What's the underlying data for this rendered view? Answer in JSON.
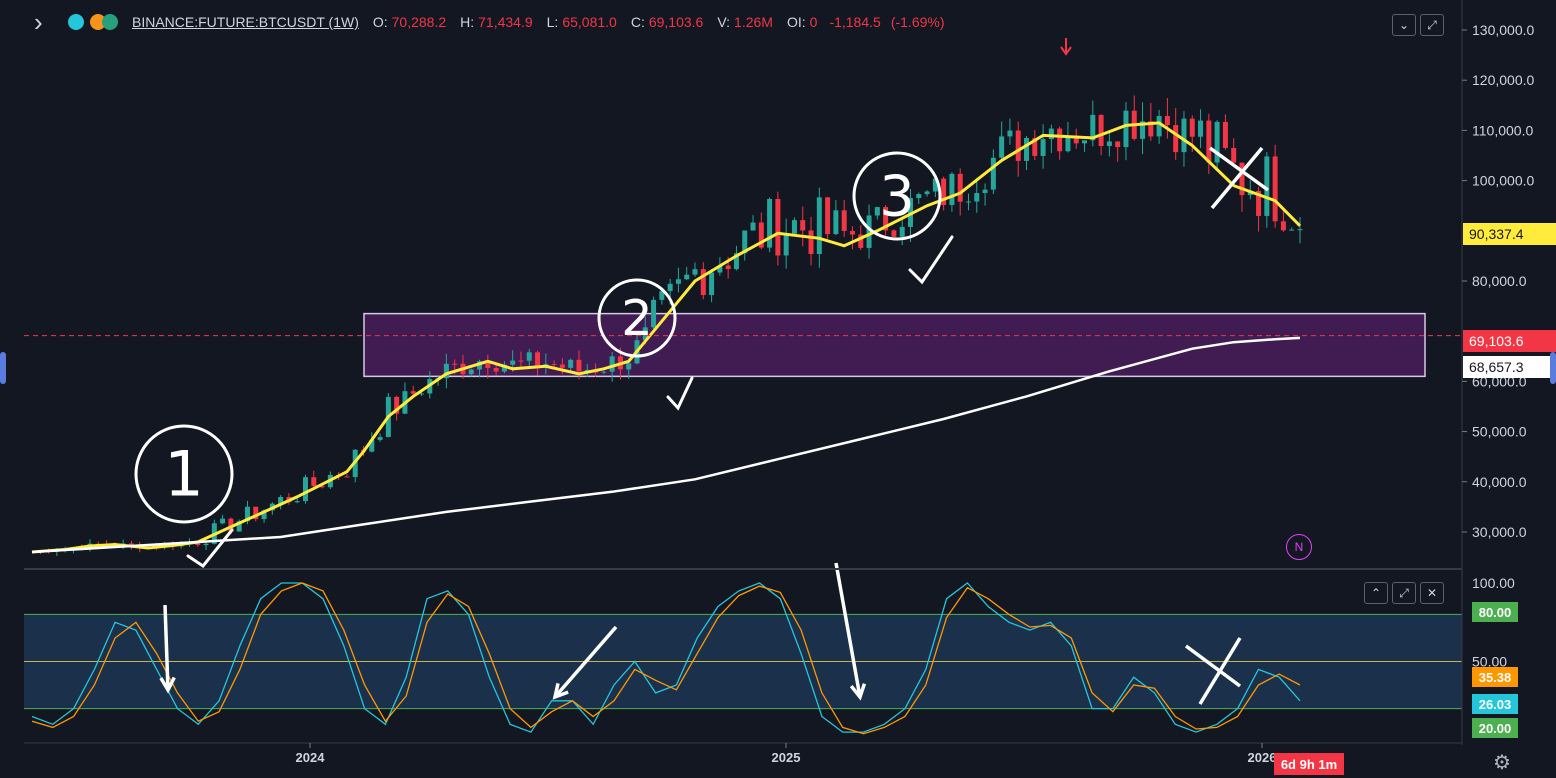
{
  "header": {
    "symbol": "BINANCE:FUTURE:BTCUSDT (1W)",
    "open_label": "O:",
    "open": "70,288.2",
    "high_label": "H:",
    "high": "71,434.9",
    "low_label": "L:",
    "low": "65,081.0",
    "close_label": "C:",
    "close": "69,103.6",
    "volume_label": "V:",
    "volume": "1.26M",
    "oi_label": "OI:",
    "oi": "0",
    "change": "-1,184.5",
    "change_pct": "(-1.69%)",
    "icons": [
      "chevron-right-icon",
      "status-dot-icon",
      "bitcoin-icon",
      "tether-icon"
    ]
  },
  "colors": {
    "background": "#131722",
    "up": "#26a69a",
    "down": "#f23645",
    "ema_fast": "#ffeb3b",
    "ema_slow": "#ffffff",
    "zone": "#4a1d5c",
    "stoch_k": "#26c6da",
    "stoch_d": "#ff9800",
    "band": "#1e3a5a",
    "band_line": "#4caf50"
  },
  "price_tags": {
    "ema_fast": "90,337.4",
    "last_price": "69,103.6",
    "ema_slow": "68,657.3"
  },
  "indicator_tags": {
    "upper": "80.00",
    "d_value": "35.38",
    "k_value": "26.03",
    "lower": "20.00"
  },
  "countdown": "6d 9h 1m",
  "markers": {
    "n_label": "N"
  },
  "annotations": [
    "1",
    "2",
    "3"
  ],
  "chart_data": [
    {
      "type": "candlestick",
      "title": "",
      "y_axis_ticks": [
        "30,000.0",
        "40,000.0",
        "50,000.0",
        "60,000.0",
        "70,000.0",
        "80,000.0",
        "90,000.0",
        "100,000.0",
        "110,000.0",
        "120,000.0",
        "130,000.0"
      ],
      "x_axis_ticks": [
        "2024",
        "2025",
        "2026"
      ],
      "ylim": [
        25000,
        133000
      ],
      "grid": false,
      "zone": {
        "low": 61000,
        "high": 73500
      },
      "series": [
        {
          "name": "",
          "kind": "ema",
          "points": [
            [
              0,
              26000
            ],
            [
              4,
              26500
            ],
            [
              7,
              27200
            ],
            [
              10,
              27500
            ],
            [
              14,
              26800
            ],
            [
              17,
              27300
            ],
            [
              20,
              28000
            ],
            [
              24,
              31000
            ],
            [
              28,
              34000
            ],
            [
              32,
              37000
            ],
            [
              35,
              39500
            ],
            [
              38,
              42000
            ],
            [
              40,
              46000
            ],
            [
              43,
              53000
            ],
            [
              46,
              57000
            ],
            [
              50,
              61500
            ],
            [
              55,
              64000
            ],
            [
              58,
              62500
            ],
            [
              62,
              63000
            ],
            [
              66,
              61500
            ],
            [
              69,
              62500
            ],
            [
              72,
              64000
            ],
            [
              75,
              70000
            ],
            [
              80,
              80000
            ],
            [
              85,
              85000
            ],
            [
              90,
              89500
            ],
            [
              95,
              88500
            ],
            [
              98,
              87000
            ],
            [
              102,
              90000
            ],
            [
              108,
              95000
            ],
            [
              112,
              97500
            ],
            [
              117,
              104000
            ],
            [
              122,
              109000
            ],
            [
              128,
              108500
            ],
            [
              132,
              111000
            ],
            [
              136,
              111500
            ],
            [
              140,
              107000
            ],
            [
              145,
              99000
            ],
            [
              150,
              96000
            ],
            [
              153,
              91000
            ]
          ]
        },
        {
          "name": "",
          "kind": "ma",
          "points": [
            [
              0,
              26000
            ],
            [
              10,
              27000
            ],
            [
              20,
              28000
            ],
            [
              30,
              29000
            ],
            [
              40,
              31500
            ],
            [
              50,
              34000
            ],
            [
              60,
              36000
            ],
            [
              70,
              38000
            ],
            [
              80,
              40500
            ],
            [
              90,
              44500
            ],
            [
              100,
              48500
            ],
            [
              110,
              52500
            ],
            [
              120,
              57000
            ],
            [
              130,
              62000
            ],
            [
              140,
              66500
            ],
            [
              145,
              67800
            ],
            [
              150,
              68400
            ],
            [
              153,
              68657
            ]
          ]
        }
      ]
    },
    {
      "type": "line",
      "title": "",
      "y_axis_ticks": [
        "20.00",
        "50.00",
        "80.00",
        "100.00"
      ],
      "ylim": [
        0,
        100
      ],
      "band": [
        20,
        80
      ],
      "series": [
        {
          "name": "",
          "kind": "k",
          "values": [
            15,
            10,
            20,
            45,
            75,
            70,
            45,
            20,
            10,
            25,
            60,
            90,
            100,
            100,
            90,
            60,
            20,
            10,
            40,
            90,
            95,
            80,
            40,
            10,
            5,
            25,
            25,
            10,
            35,
            50,
            30,
            35,
            65,
            85,
            95,
            100,
            90,
            55,
            15,
            5,
            5,
            10,
            20,
            45,
            90,
            100,
            85,
            75,
            70,
            75,
            60,
            20,
            20,
            40,
            30,
            10,
            5,
            10,
            20,
            45,
            40,
            25
          ]
        },
        {
          "name": "",
          "kind": "d",
          "values": [
            12,
            8,
            15,
            35,
            65,
            75,
            55,
            30,
            12,
            18,
            45,
            80,
            95,
            100,
            95,
            70,
            35,
            12,
            28,
            75,
            93,
            85,
            55,
            20,
            8,
            18,
            25,
            15,
            25,
            45,
            38,
            32,
            55,
            78,
            92,
            98,
            94,
            70,
            30,
            8,
            4,
            8,
            15,
            35,
            78,
            97,
            90,
            80,
            72,
            73,
            65,
            30,
            18,
            35,
            33,
            15,
            7,
            8,
            15,
            35,
            42,
            35
          ]
        }
      ]
    }
  ]
}
